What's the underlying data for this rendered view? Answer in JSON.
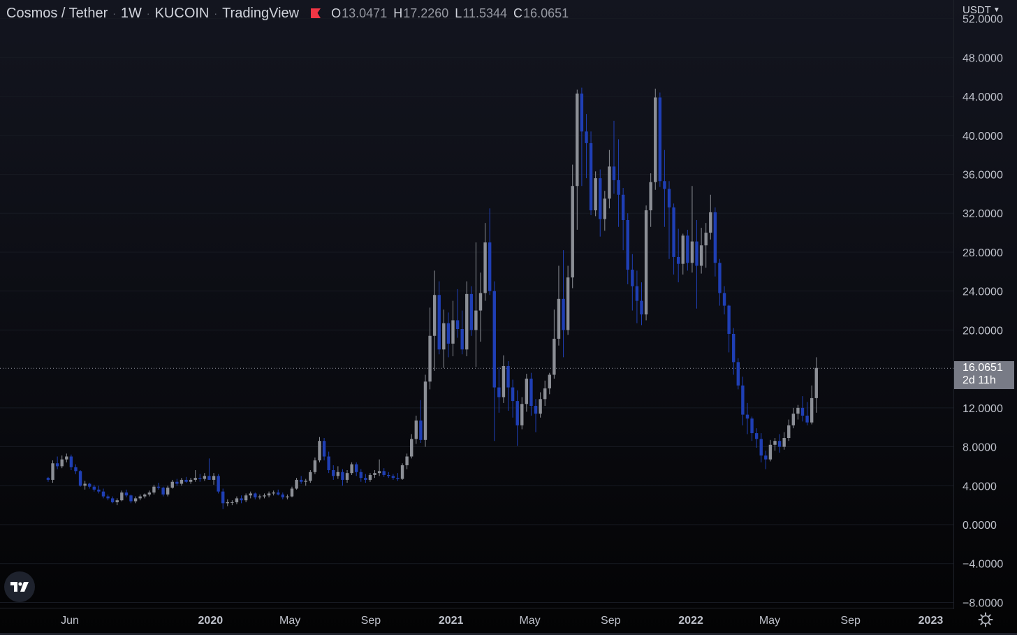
{
  "header": {
    "symbol": "Cosmos / Tether",
    "interval": "1W",
    "exchange": "KUCOIN",
    "source": "TradingView",
    "flag_icon": "flag-icon",
    "ohlc": {
      "open_label": "O",
      "open": "13.0471",
      "high_label": "H",
      "high": "17.2260",
      "low_label": "L",
      "low": "11.5344",
      "close_label": "C",
      "close": "16.0651"
    }
  },
  "price_scale": {
    "currency": "USDT",
    "last_price": "16.0651",
    "countdown": "2d 11h"
  },
  "colors": {
    "up": "#8c8f96",
    "down": "#1f3fb5",
    "axis_text": "#c0c3cc",
    "last_price_line": "#9598a1",
    "price_tag": "#787b86"
  },
  "icons": {
    "logo": "tradingview-logo-icon",
    "settings": "gear-icon"
  },
  "chart_data": {
    "type": "candlestick",
    "title": "",
    "interval": "1W",
    "y_ticks": [
      "52.0000",
      "48.0000",
      "44.0000",
      "40.0000",
      "36.0000",
      "32.0000",
      "28.0000",
      "24.0000",
      "20.0000",
      "12.0000",
      "8.0000",
      "4.0000",
      "0.0000",
      "−4.0000",
      "−8.0000"
    ],
    "y_tick_values": [
      52,
      48,
      44,
      40,
      36,
      32,
      28,
      24,
      20,
      12,
      8,
      4,
      0,
      -4,
      -8
    ],
    "ylim": [
      -8.8,
      55
    ],
    "x_ticks": [
      {
        "label": "Jun",
        "bold": false,
        "date": "2019-06-01"
      },
      {
        "label": "2020",
        "bold": true,
        "date": "2020-01-01"
      },
      {
        "label": "May",
        "bold": false,
        "date": "2020-05-01"
      },
      {
        "label": "Sep",
        "bold": false,
        "date": "2020-09-01"
      },
      {
        "label": "2021",
        "bold": true,
        "date": "2021-01-01"
      },
      {
        "label": "May",
        "bold": false,
        "date": "2021-05-01"
      },
      {
        "label": "Sep",
        "bold": false,
        "date": "2021-09-01"
      },
      {
        "label": "2022",
        "bold": true,
        "date": "2022-01-01"
      },
      {
        "label": "May",
        "bold": false,
        "date": "2022-05-01"
      },
      {
        "label": "Sep",
        "bold": false,
        "date": "2022-09-01"
      },
      {
        "label": "2023",
        "bold": true,
        "date": "2023-01-01"
      }
    ],
    "last_price": 16.0651,
    "first_candle_week": "2019-04-29",
    "candles": [
      [
        4.8,
        4.9,
        4.4,
        4.6
      ],
      [
        4.6,
        6.6,
        4.3,
        6.3
      ],
      [
        6.3,
        7.0,
        5.7,
        6.0
      ],
      [
        6.0,
        7.1,
        5.8,
        6.7
      ],
      [
        6.7,
        7.3,
        6.4,
        7.0
      ],
      [
        7.0,
        7.2,
        5.6,
        5.9
      ],
      [
        5.9,
        6.2,
        5.2,
        5.5
      ],
      [
        5.5,
        5.6,
        3.9,
        4.0
      ],
      [
        4.0,
        4.5,
        3.6,
        4.2
      ],
      [
        4.2,
        4.3,
        3.7,
        3.9
      ],
      [
        3.9,
        4.1,
        3.4,
        3.6
      ],
      [
        3.6,
        4.0,
        3.2,
        3.4
      ],
      [
        3.4,
        3.7,
        2.7,
        2.9
      ],
      [
        2.9,
        3.1,
        2.5,
        2.7
      ],
      [
        2.7,
        2.9,
        2.2,
        2.3
      ],
      [
        2.3,
        2.7,
        2.0,
        2.5
      ],
      [
        2.5,
        3.5,
        2.4,
        3.3
      ],
      [
        3.3,
        3.6,
        2.8,
        3.0
      ],
      [
        3.0,
        3.1,
        2.2,
        2.4
      ],
      [
        2.4,
        2.9,
        2.2,
        2.7
      ],
      [
        2.7,
        3.1,
        2.5,
        2.9
      ],
      [
        2.9,
        3.2,
        2.7,
        3.1
      ],
      [
        3.1,
        3.5,
        2.9,
        3.3
      ],
      [
        3.3,
        4.1,
        3.1,
        3.9
      ],
      [
        3.9,
        4.3,
        3.6,
        3.8
      ],
      [
        3.8,
        3.9,
        2.9,
        3.1
      ],
      [
        3.1,
        4.0,
        2.9,
        3.8
      ],
      [
        3.8,
        4.6,
        3.7,
        4.4
      ],
      [
        4.4,
        4.7,
        4.0,
        4.2
      ],
      [
        4.2,
        4.8,
        4.0,
        4.6
      ],
      [
        4.6,
        4.9,
        4.3,
        4.4
      ],
      [
        4.4,
        4.8,
        4.2,
        4.6
      ],
      [
        4.6,
        5.6,
        4.4,
        4.8
      ],
      [
        4.8,
        5.2,
        4.4,
        4.7
      ],
      [
        4.7,
        5.3,
        4.5,
        5.0
      ],
      [
        5.0,
        6.8,
        4.6,
        4.6
      ],
      [
        4.6,
        5.3,
        4.1,
        5.0
      ],
      [
        5.0,
        5.2,
        3.2,
        3.4
      ],
      [
        3.4,
        3.7,
        1.6,
        2.2
      ],
      [
        2.2,
        2.6,
        1.9,
        2.3
      ],
      [
        2.3,
        2.5,
        2.0,
        2.3
      ],
      [
        2.3,
        2.9,
        2.1,
        2.7
      ],
      [
        2.7,
        3.0,
        2.2,
        2.5
      ],
      [
        2.5,
        3.2,
        2.3,
        3.0
      ],
      [
        3.0,
        3.4,
        2.7,
        3.2
      ],
      [
        3.2,
        3.3,
        2.6,
        2.8
      ],
      [
        2.8,
        3.1,
        2.6,
        2.9
      ],
      [
        2.9,
        3.2,
        2.7,
        3.0
      ],
      [
        3.0,
        3.4,
        2.8,
        3.2
      ],
      [
        3.2,
        3.5,
        3.0,
        3.3
      ],
      [
        3.3,
        3.6,
        3.0,
        3.1
      ],
      [
        3.1,
        3.3,
        2.6,
        2.8
      ],
      [
        2.8,
        3.1,
        2.6,
        2.9
      ],
      [
        2.9,
        3.9,
        2.8,
        3.7
      ],
      [
        3.7,
        4.8,
        3.6,
        4.6
      ],
      [
        4.6,
        5.0,
        4.2,
        4.4
      ],
      [
        4.4,
        4.7,
        4.0,
        4.5
      ],
      [
        4.5,
        5.6,
        4.3,
        5.4
      ],
      [
        5.4,
        6.9,
        5.2,
        6.6
      ],
      [
        6.6,
        9.0,
        6.4,
        8.6
      ],
      [
        8.6,
        8.9,
        6.6,
        7.0
      ],
      [
        7.0,
        7.5,
        5.3,
        5.6
      ],
      [
        5.6,
        6.1,
        4.6,
        5.0
      ],
      [
        5.0,
        6.0,
        4.7,
        5.4
      ],
      [
        5.4,
        5.7,
        4.0,
        4.6
      ],
      [
        4.6,
        5.6,
        4.3,
        5.3
      ],
      [
        5.3,
        6.4,
        5.1,
        6.2
      ],
      [
        6.2,
        6.4,
        5.0,
        5.4
      ],
      [
        5.4,
        5.7,
        4.4,
        4.8
      ],
      [
        4.8,
        5.2,
        4.3,
        4.6
      ],
      [
        4.6,
        5.3,
        4.4,
        5.1
      ],
      [
        5.1,
        5.6,
        4.8,
        5.3
      ],
      [
        5.3,
        6.7,
        5.0,
        5.5
      ],
      [
        5.5,
        5.8,
        4.9,
        5.1
      ],
      [
        5.1,
        5.4,
        4.8,
        5.0
      ],
      [
        5.0,
        5.2,
        4.6,
        4.8
      ],
      [
        4.8,
        5.3,
        4.5,
        4.7
      ],
      [
        4.7,
        6.3,
        4.6,
        6.1
      ],
      [
        6.1,
        7.3,
        5.7,
        7.0
      ],
      [
        7.0,
        9.3,
        6.8,
        8.8
      ],
      [
        8.8,
        11.2,
        8.3,
        10.7
      ],
      [
        10.7,
        12.8,
        8.4,
        8.7
      ],
      [
        8.7,
        15.4,
        8.0,
        14.7
      ],
      [
        14.7,
        22.3,
        13.9,
        19.4
      ],
      [
        19.4,
        26.1,
        15.8,
        23.6
      ],
      [
        23.6,
        25.0,
        17.5,
        18.0
      ],
      [
        18.0,
        22.1,
        16.1,
        20.7
      ],
      [
        20.7,
        21.8,
        17.2,
        18.6
      ],
      [
        18.6,
        23.0,
        17.3,
        21.0
      ],
      [
        21.0,
        24.2,
        19.2,
        20.1
      ],
      [
        20.1,
        22.0,
        17.5,
        18.0
      ],
      [
        18.0,
        25.0,
        17.3,
        23.7
      ],
      [
        23.7,
        24.5,
        19.4,
        20.0
      ],
      [
        20.0,
        29.0,
        16.2,
        22.0
      ],
      [
        22.0,
        25.9,
        18.8,
        23.8
      ],
      [
        23.8,
        31.0,
        23.0,
        29.0
      ],
      [
        29.0,
        32.5,
        23.6,
        24.0
      ],
      [
        24.0,
        25.0,
        8.6,
        14.1
      ],
      [
        14.1,
        16.2,
        11.5,
        13.1
      ],
      [
        13.1,
        17.4,
        12.5,
        16.3
      ],
      [
        16.3,
        16.8,
        11.7,
        14.1
      ],
      [
        14.1,
        14.9,
        11.0,
        12.7
      ],
      [
        12.7,
        13.8,
        8.1,
        10.2
      ],
      [
        10.2,
        13.1,
        9.8,
        12.4
      ],
      [
        12.4,
        15.5,
        11.6,
        15.0
      ],
      [
        15.0,
        15.6,
        11.2,
        12.2
      ],
      [
        12.2,
        12.9,
        9.5,
        11.4
      ],
      [
        11.4,
        13.6,
        11.0,
        12.9
      ],
      [
        12.9,
        14.8,
        12.2,
        14.0
      ],
      [
        14.0,
        15.6,
        13.4,
        15.4
      ],
      [
        15.4,
        22.1,
        15.0,
        19.1
      ],
      [
        19.1,
        26.6,
        18.4,
        23.2
      ],
      [
        23.2,
        28.2,
        17.2,
        20.0
      ],
      [
        20.0,
        26.6,
        19.5,
        25.4
      ],
      [
        25.4,
        37.0,
        24.3,
        34.8
      ],
      [
        34.8,
        44.7,
        30.3,
        44.3
      ],
      [
        44.3,
        44.9,
        34.8,
        40.4
      ],
      [
        40.4,
        42.2,
        35.6,
        39.2
      ],
      [
        39.2,
        40.4,
        31.8,
        32.3
      ],
      [
        32.3,
        36.3,
        31.7,
        35.6
      ],
      [
        35.6,
        36.5,
        29.6,
        31.4
      ],
      [
        31.4,
        34.3,
        30.2,
        33.5
      ],
      [
        33.5,
        38.5,
        32.5,
        36.8
      ],
      [
        36.8,
        41.5,
        34.0,
        35.4
      ],
      [
        35.4,
        39.6,
        30.6,
        33.9
      ],
      [
        33.9,
        34.6,
        28.2,
        31.3
      ],
      [
        31.3,
        32.0,
        24.7,
        26.2
      ],
      [
        26.2,
        27.8,
        22.0,
        24.5
      ],
      [
        24.5,
        26.1,
        20.7,
        23.0
      ],
      [
        23.0,
        24.9,
        20.5,
        21.6
      ],
      [
        21.6,
        32.8,
        21.0,
        32.3
      ],
      [
        32.3,
        36.1,
        30.6,
        35.2
      ],
      [
        35.2,
        44.8,
        34.4,
        43.9
      ],
      [
        43.9,
        44.4,
        34.7,
        35.3
      ],
      [
        35.3,
        38.5,
        30.6,
        34.5
      ],
      [
        34.5,
        35.3,
        27.3,
        32.6
      ],
      [
        32.6,
        33.0,
        25.7,
        27.5
      ],
      [
        27.5,
        30.4,
        24.9,
        26.8
      ],
      [
        26.8,
        29.9,
        25.7,
        29.7
      ],
      [
        29.7,
        30.3,
        26.1,
        26.9
      ],
      [
        26.9,
        34.8,
        25.9,
        29.1
      ],
      [
        29.1,
        31.3,
        22.2,
        26.6
      ],
      [
        26.6,
        30.5,
        25.8,
        28.7
      ],
      [
        28.7,
        31.0,
        26.4,
        30.0
      ],
      [
        30.0,
        33.9,
        29.3,
        32.1
      ],
      [
        32.1,
        32.6,
        25.5,
        26.9
      ],
      [
        26.9,
        27.3,
        22.5,
        23.8
      ],
      [
        23.8,
        24.5,
        21.6,
        22.5
      ],
      [
        22.5,
        22.6,
        17.7,
        19.6
      ],
      [
        19.6,
        20.2,
        15.4,
        16.7
      ],
      [
        16.7,
        17.1,
        13.9,
        14.3
      ],
      [
        14.3,
        15.2,
        10.2,
        11.3
      ],
      [
        11.3,
        12.5,
        9.3,
        10.9
      ],
      [
        10.9,
        11.1,
        8.6,
        9.4
      ],
      [
        9.4,
        9.9,
        7.9,
        8.8
      ],
      [
        8.8,
        9.4,
        6.4,
        7.1
      ],
      [
        7.1,
        7.6,
        5.7,
        6.7
      ],
      [
        6.7,
        8.7,
        6.5,
        8.2
      ],
      [
        8.2,
        8.9,
        7.6,
        8.6
      ],
      [
        8.6,
        9.3,
        7.4,
        8.0
      ],
      [
        8.0,
        9.5,
        7.7,
        8.9
      ],
      [
        8.9,
        10.8,
        8.6,
        10.2
      ],
      [
        10.2,
        12.0,
        9.9,
        11.4
      ],
      [
        11.4,
        12.3,
        10.8,
        12.0
      ],
      [
        12.0,
        13.2,
        10.6,
        11.2
      ],
      [
        11.2,
        12.6,
        10.2,
        10.5
      ],
      [
        10.5,
        14.3,
        10.3,
        13.0
      ],
      [
        13.0,
        17.2,
        11.5,
        16.1
      ]
    ]
  }
}
